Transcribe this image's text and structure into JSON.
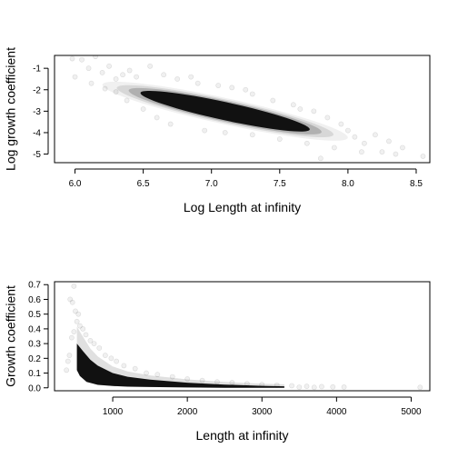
{
  "chart_data": [
    {
      "type": "scatter",
      "title": "",
      "xlabel": "Log Length at infinity",
      "ylabel": "Log growth coefficient",
      "xlim": [
        5.85,
        8.6
      ],
      "ylim": [
        -5.4,
        -0.4
      ],
      "x_ticks": [
        6.0,
        6.5,
        7.0,
        7.5,
        8.0,
        8.5
      ],
      "x_tick_labels": [
        "6.0",
        "6.5",
        "7.0",
        "7.5",
        "8.0",
        "8.5"
      ],
      "y_ticks": [
        -1,
        -2,
        -3,
        -4,
        -5
      ],
      "y_tick_labels": [
        "-1",
        "-2",
        "-3",
        "-4",
        "-5"
      ],
      "grid": false,
      "dense_region": {
        "center": [
          7.1,
          -3.0
        ],
        "spread_along": 0.62,
        "spread_across": 0.42,
        "slope": -1.38
      },
      "points": [
        [
          5.98,
          -0.55
        ],
        [
          6.05,
          -0.6
        ],
        [
          6.15,
          -0.45
        ],
        [
          6.1,
          -1.0
        ],
        [
          6.0,
          -1.4
        ],
        [
          6.2,
          -1.2
        ],
        [
          6.25,
          -0.9
        ],
        [
          6.3,
          -1.5
        ],
        [
          6.35,
          -1.3
        ],
        [
          6.12,
          -1.7
        ],
        [
          6.4,
          -1.1
        ],
        [
          6.45,
          -1.4
        ],
        [
          6.3,
          -2.1
        ],
        [
          6.38,
          -2.5
        ],
        [
          6.22,
          -1.95
        ],
        [
          6.5,
          -2.9
        ],
        [
          6.6,
          -3.3
        ],
        [
          6.7,
          -3.6
        ],
        [
          6.75,
          -1.5
        ],
        [
          6.9,
          -1.7
        ],
        [
          7.05,
          -1.8
        ],
        [
          7.15,
          -1.9
        ],
        [
          7.3,
          -2.2
        ],
        [
          7.45,
          -2.5
        ],
        [
          7.6,
          -2.7
        ],
        [
          7.75,
          -3.0
        ],
        [
          7.85,
          -3.3
        ],
        [
          7.95,
          -3.6
        ],
        [
          8.0,
          -3.9
        ],
        [
          8.05,
          -4.2
        ],
        [
          8.12,
          -4.5
        ],
        [
          8.2,
          -4.1
        ],
        [
          8.3,
          -4.4
        ],
        [
          8.4,
          -4.7
        ],
        [
          8.55,
          -5.1
        ],
        [
          8.35,
          -5.0
        ],
        [
          8.1,
          -4.9
        ],
        [
          7.9,
          -4.7
        ],
        [
          7.7,
          -4.5
        ],
        [
          7.5,
          -4.3
        ],
        [
          7.3,
          -4.1
        ],
        [
          7.1,
          -4.0
        ],
        [
          6.95,
          -3.9
        ],
        [
          7.8,
          -5.2
        ],
        [
          8.25,
          -4.9
        ],
        [
          6.55,
          -0.9
        ],
        [
          6.65,
          -1.3
        ],
        [
          6.85,
          -1.4
        ],
        [
          7.25,
          -2.0
        ],
        [
          7.65,
          -2.9
        ]
      ]
    },
    {
      "type": "scatter",
      "title": "",
      "xlabel": "Length at infinity",
      "ylabel": "Growth coefficient",
      "xlim": [
        220,
        5250
      ],
      "ylim": [
        -0.02,
        0.72
      ],
      "x_ticks": [
        1000,
        2000,
        3000,
        4000,
        5000
      ],
      "x_tick_labels": [
        "1000",
        "2000",
        "3000",
        "4000",
        "5000"
      ],
      "y_ticks": [
        0.0,
        0.1,
        0.2,
        0.3,
        0.4,
        0.5,
        0.6,
        0.7
      ],
      "y_tick_labels": [
        "0.0",
        "0.1",
        "0.2",
        "0.3",
        "0.4",
        "0.5",
        "0.6",
        "0.7"
      ],
      "grid": false,
      "curve_upper": [
        [
          520,
          0.3
        ],
        [
          600,
          0.25
        ],
        [
          700,
          0.19
        ],
        [
          800,
          0.15
        ],
        [
          1000,
          0.1
        ],
        [
          1200,
          0.075
        ],
        [
          1500,
          0.055
        ],
        [
          2000,
          0.035
        ],
        [
          2500,
          0.022
        ],
        [
          3000,
          0.013
        ],
        [
          3300,
          0.01
        ]
      ],
      "curve_lower": [
        [
          3300,
          0.0
        ],
        [
          3000,
          0.0
        ],
        [
          2500,
          0.0
        ],
        [
          2000,
          0.002
        ],
        [
          1500,
          0.005
        ],
        [
          1200,
          0.008
        ],
        [
          1000,
          0.012
        ],
        [
          800,
          0.02
        ],
        [
          650,
          0.04
        ],
        [
          560,
          0.08
        ],
        [
          520,
          0.12
        ]
      ],
      "points": [
        [
          480,
          0.69
        ],
        [
          430,
          0.6
        ],
        [
          460,
          0.58
        ],
        [
          500,
          0.52
        ],
        [
          520,
          0.45
        ],
        [
          540,
          0.5
        ],
        [
          560,
          0.42
        ],
        [
          600,
          0.4
        ],
        [
          480,
          0.38
        ],
        [
          450,
          0.34
        ],
        [
          640,
          0.36
        ],
        [
          700,
          0.32
        ],
        [
          750,
          0.3
        ],
        [
          820,
          0.27
        ],
        [
          900,
          0.22
        ],
        [
          980,
          0.2
        ],
        [
          1050,
          0.18
        ],
        [
          1150,
          0.15
        ],
        [
          1300,
          0.13
        ],
        [
          1450,
          0.1
        ],
        [
          1600,
          0.09
        ],
        [
          1800,
          0.075
        ],
        [
          2000,
          0.06
        ],
        [
          2200,
          0.05
        ],
        [
          2400,
          0.04
        ],
        [
          2600,
          0.035
        ],
        [
          2800,
          0.028
        ],
        [
          3000,
          0.022
        ],
        [
          3200,
          0.018
        ],
        [
          3400,
          0.014
        ],
        [
          3600,
          0.01
        ],
        [
          3800,
          0.008
        ],
        [
          3950,
          0.006
        ],
        [
          4100,
          0.005
        ],
        [
          5120,
          0.003
        ],
        [
          3500,
          0.004
        ],
        [
          3700,
          0.003
        ],
        [
          420,
          0.22
        ],
        [
          400,
          0.18
        ],
        [
          380,
          0.12
        ]
      ]
    }
  ]
}
